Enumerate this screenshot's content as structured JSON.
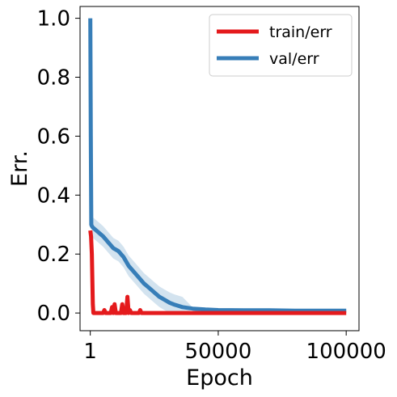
{
  "chart_data": {
    "type": "line",
    "xlabel": "Epoch",
    "ylabel": "Err.",
    "x_ticks": [
      1,
      50000,
      100000
    ],
    "x_tick_labels": [
      "1",
      "50000",
      "100000"
    ],
    "y_ticks": [
      0.0,
      0.2,
      0.4,
      0.6,
      0.8,
      1.0
    ],
    "y_tick_labels": [
      "0.0",
      "0.2",
      "0.4",
      "0.6",
      "0.8",
      "1.0"
    ],
    "xlim": [
      -4000,
      105000
    ],
    "ylim": [
      -0.06,
      1.04
    ],
    "grid": false,
    "legend_position": "top-right",
    "series": [
      {
        "name": "train/err",
        "color": "#e41a1c",
        "x": [
          1,
          300,
          600,
          1000,
          1200,
          5000,
          5500,
          6000,
          8000,
          8500,
          9000,
          9500,
          10000,
          12000,
          12500,
          13000,
          14000,
          14500,
          15000,
          15500,
          16000,
          19000,
          19500,
          20000,
          30000,
          60000,
          100000
        ],
        "y": [
          0.28,
          0.26,
          0.2,
          0.03,
          0.0,
          0.0,
          0.01,
          0.0,
          0.0,
          0.02,
          0.0,
          0.03,
          0.0,
          0.0,
          0.03,
          0.0,
          0.0,
          0.055,
          0.0,
          0.01,
          0.0,
          0.0,
          0.01,
          0.0,
          0.0,
          0.0,
          0.0
        ]
      },
      {
        "name": "val/err",
        "color": "#377eb8",
        "x": [
          1,
          200,
          400,
          600,
          1000,
          3000,
          5000,
          7000,
          9000,
          11000,
          13000,
          15000,
          17000,
          19000,
          21000,
          23000,
          25000,
          27000,
          29000,
          31000,
          33000,
          36000,
          40000,
          45000,
          50000,
          60000,
          70000,
          80000,
          100000
        ],
        "y": [
          1.0,
          0.6,
          0.3,
          0.295,
          0.29,
          0.275,
          0.26,
          0.24,
          0.22,
          0.21,
          0.19,
          0.16,
          0.14,
          0.12,
          0.1,
          0.085,
          0.07,
          0.055,
          0.045,
          0.035,
          0.028,
          0.02,
          0.015,
          0.012,
          0.01,
          0.009,
          0.009,
          0.008,
          0.008
        ]
      }
    ]
  }
}
